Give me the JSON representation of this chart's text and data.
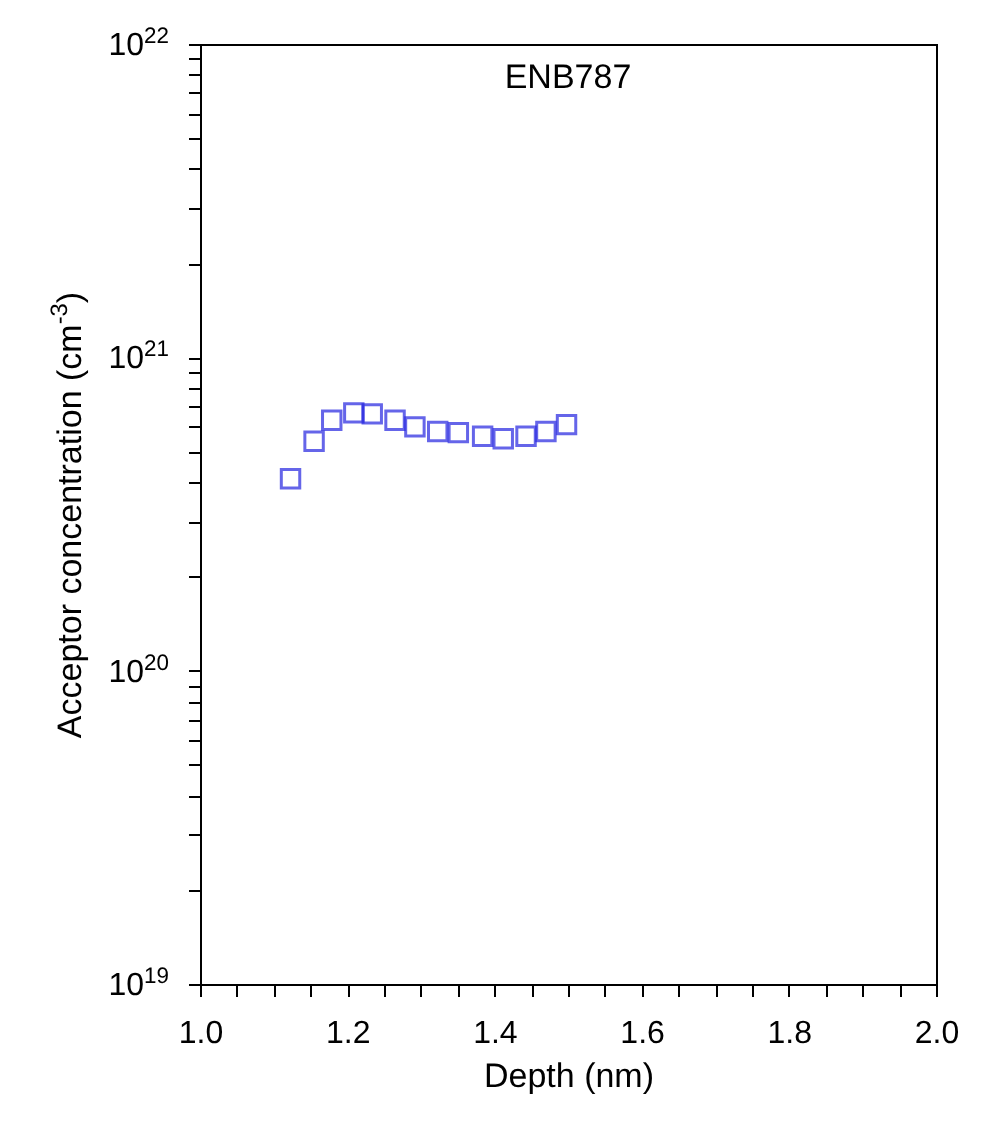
{
  "chart_data": {
    "type": "scatter",
    "title": "ENB787",
    "xlabel": "Depth (nm)",
    "ylabel": "Acceptor concentration (cm$^{-3}$)",
    "x": [
      1.123,
      1.155,
      1.179,
      1.209,
      1.234,
      1.265,
      1.292,
      1.323,
      1.351,
      1.384,
      1.412,
      1.443,
      1.47,
      1.498
    ],
    "series": [
      {
        "color": "#2424e0",
        "values": [
          4.1e+20,
          5.4e+20,
          6.3e+20,
          6.65e+20,
          6.6e+20,
          6.3e+20,
          6e+20,
          5.8e+20,
          5.75e+20,
          5.6e+20,
          5.5e+20,
          5.6e+20,
          5.8e+20,
          6.1e+20
        ]
      }
    ],
    "marker": "square",
    "log": "y",
    "xlim": [
      1.0,
      2.0
    ],
    "xticks": [
      {
        "value": 1.0,
        "label": "1.0"
      },
      {
        "value": 1.05,
        "label": null
      },
      {
        "value": 1.1,
        "label": null
      },
      {
        "value": 1.15,
        "label": null
      },
      {
        "value": 1.2,
        "label": "1.2"
      },
      {
        "value": 1.25,
        "label": null
      },
      {
        "value": 1.3,
        "label": null
      },
      {
        "value": 1.35,
        "label": null
      },
      {
        "value": 1.4,
        "label": "1.4"
      },
      {
        "value": 1.45,
        "label": null
      },
      {
        "value": 1.5,
        "label": null
      },
      {
        "value": 1.55,
        "label": null
      },
      {
        "value": 1.6,
        "label": "1.6"
      },
      {
        "value": 1.65,
        "label": null
      },
      {
        "value": 1.7,
        "label": null
      },
      {
        "value": 1.75,
        "label": null
      },
      {
        "value": 1.8,
        "label": "1.8"
      },
      {
        "value": 1.85,
        "label": null
      },
      {
        "value": 1.9,
        "label": null
      },
      {
        "value": 1.95,
        "label": null
      },
      {
        "value": 2.0,
        "label": "2.0"
      }
    ],
    "ylim": [
      1e+19,
      1e+22
    ],
    "yticks": [
      {
        "value": 1e+19,
        "label": "10$^{19}$"
      },
      {
        "value": 2e+19,
        "label": null
      },
      {
        "value": 3e+19,
        "label": null
      },
      {
        "value": 4e+19,
        "label": null
      },
      {
        "value": 5e+19,
        "label": null
      },
      {
        "value": 6e+19,
        "label": null
      },
      {
        "value": 7e+19,
        "label": null
      },
      {
        "value": 8e+19,
        "label": null
      },
      {
        "value": 9e+19,
        "label": null
      },
      {
        "value": 1e+20,
        "label": "10$^{20}$"
      },
      {
        "value": 2e+20,
        "label": null
      },
      {
        "value": 3e+20,
        "label": null
      },
      {
        "value": 4e+20,
        "label": null
      },
      {
        "value": 5e+20,
        "label": null
      },
      {
        "value": 6e+20,
        "label": null
      },
      {
        "value": 7e+20,
        "label": null
      },
      {
        "value": 8e+20,
        "label": null
      },
      {
        "value": 9e+20,
        "label": null
      },
      {
        "value": 1e+21,
        "label": "10$^{21}$"
      },
      {
        "value": 2e+21,
        "label": null
      },
      {
        "value": 3e+21,
        "label": null
      },
      {
        "value": 4e+21,
        "label": null
      },
      {
        "value": 5e+21,
        "label": null
      },
      {
        "value": 6e+21,
        "label": null
      },
      {
        "value": 7e+21,
        "label": null
      },
      {
        "value": 8e+21,
        "label": null
      },
      {
        "value": 9e+21,
        "label": null
      },
      {
        "value": 1e+22,
        "label": "10$^{22}$"
      }
    ]
  }
}
